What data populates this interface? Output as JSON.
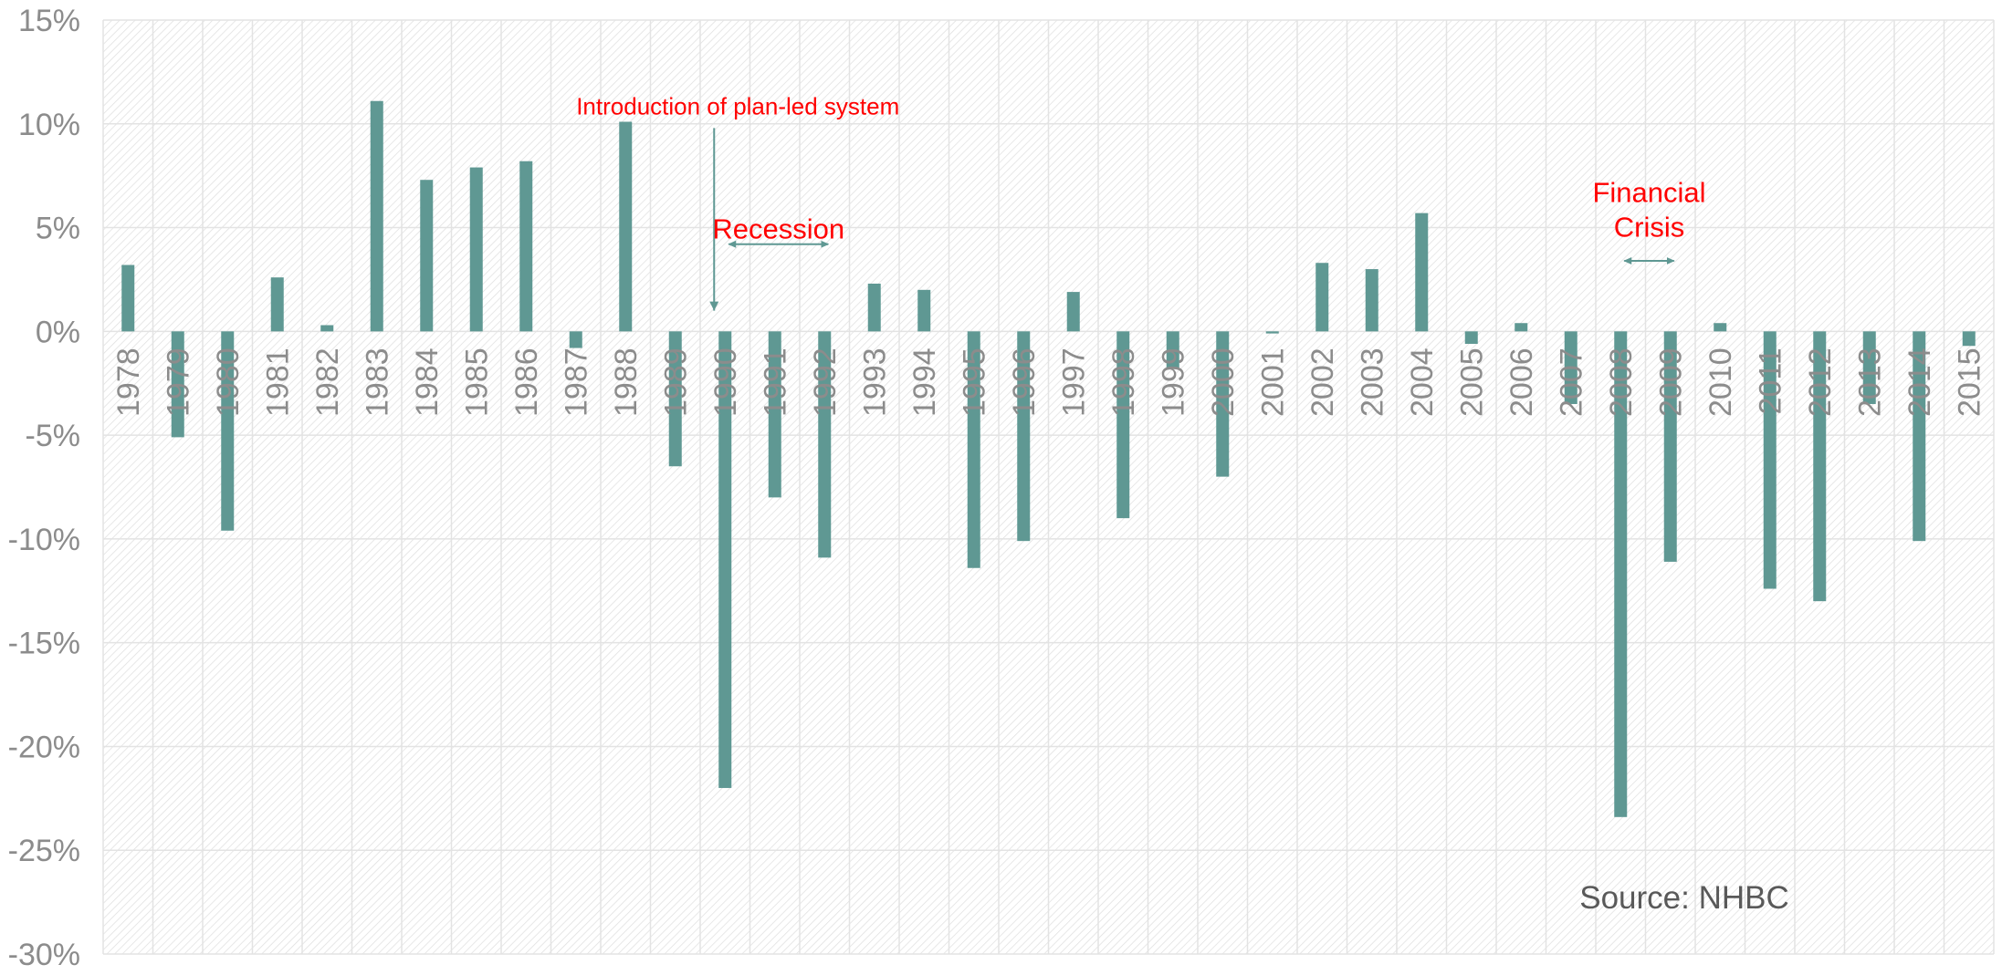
{
  "colors": {
    "bar": "#5f9893",
    "axis_text": "#8c8c8c",
    "grid": "#e3e3e3",
    "annotation": "#ff0000",
    "arrow": "#5f9893",
    "source_text": "#595959"
  },
  "chart_data": {
    "type": "bar",
    "title": "",
    "xlabel": "",
    "ylabel": "",
    "ylim": [
      -30,
      15
    ],
    "y_ticks": [
      15,
      10,
      5,
      0,
      -5,
      -10,
      -15,
      -20,
      -25,
      -30
    ],
    "y_tick_labels": [
      "15%",
      "10%",
      "5%",
      "0%",
      "-5%",
      "-10%",
      "-15%",
      "-20%",
      "-25%",
      "-30%"
    ],
    "categories": [
      "1978",
      "1979",
      "1980",
      "1981",
      "1982",
      "1983",
      "1984",
      "1985",
      "1986",
      "1987",
      "1988",
      "1989",
      "1990",
      "1991",
      "1992",
      "1993",
      "1994",
      "1995",
      "1996",
      "1997",
      "1998",
      "1999",
      "2000",
      "2001",
      "2002",
      "2003",
      "2004",
      "2005",
      "2006",
      "2007",
      "2008",
      "2009",
      "2010",
      "2011",
      "2012",
      "2013",
      "2014",
      "2015"
    ],
    "values": [
      3.2,
      -5.1,
      -9.6,
      2.6,
      0.3,
      11.1,
      7.3,
      7.9,
      8.2,
      -0.8,
      10.1,
      -6.5,
      -22.0,
      -8.0,
      -10.9,
      2.3,
      2.0,
      -11.4,
      -10.1,
      1.9,
      -9.0,
      -1.8,
      -7.0,
      -0.1,
      3.3,
      3.0,
      5.7,
      -0.6,
      0.4,
      -3.5,
      -23.4,
      -11.1,
      0.4,
      -12.4,
      -13.0,
      -3.5,
      -10.1,
      -0.7
    ],
    "grid": true,
    "legend": "none",
    "annotations": [
      {
        "text": "Introduction of plan-led system",
        "kind": "down-arrow",
        "at_category": "1990",
        "y_text": 10.8,
        "y_from": 9.8,
        "y_to": 1.0
      },
      {
        "text": "Recession",
        "kind": "double-arrow",
        "from_category": "1990",
        "to_category": "1992",
        "y": 4.2,
        "y_text": 5.0
      },
      {
        "text": "Financial\nCrisis",
        "kind": "double-arrow",
        "from_category": "2008",
        "to_category": "2009",
        "y": 3.4,
        "y_text": 5.1
      }
    ],
    "source_note": "Source: NHBC"
  }
}
